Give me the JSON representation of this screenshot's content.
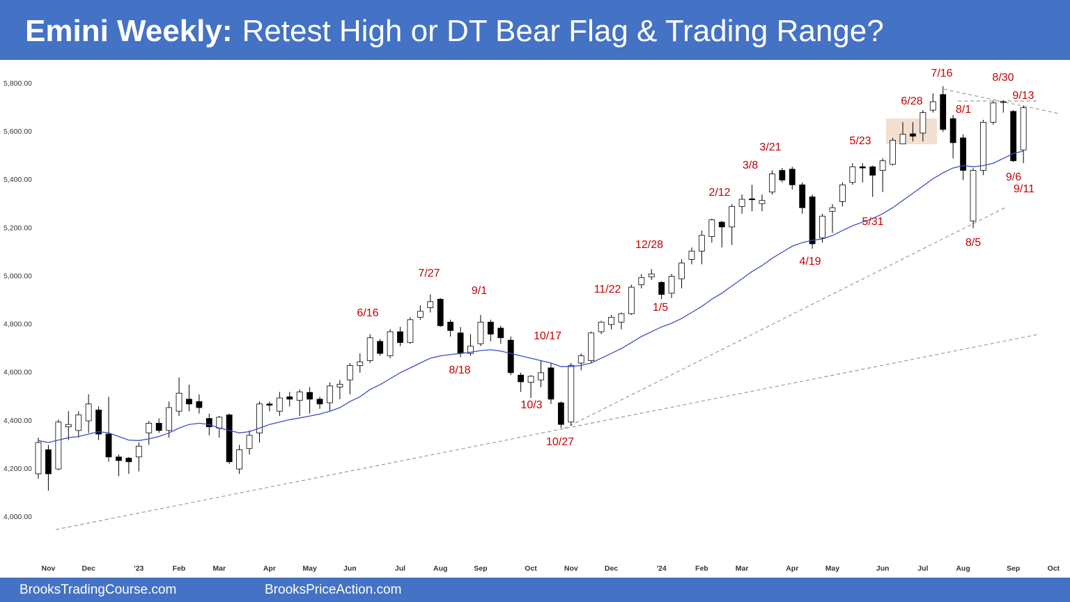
{
  "chart_data": {
    "type": "candlestick",
    "title_bold": "Emini Weekly:",
    "title": "Retest High or DT Bear Flag & Trading Range?",
    "footer_left": "BrooksTradingCourse.com",
    "footer_right": "BrooksPriceAction.com",
    "categories": [
      null,
      "Nov",
      null,
      null,
      null,
      "Dec",
      null,
      null,
      null,
      null,
      "'23",
      null,
      null,
      null,
      "Feb",
      null,
      null,
      null,
      "Mar",
      null,
      null,
      null,
      null,
      "Apr",
      null,
      null,
      null,
      "May",
      null,
      null,
      null,
      "Jun",
      null,
      null,
      null,
      null,
      "Jul",
      null,
      null,
      null,
      "Aug",
      null,
      null,
      null,
      "Sep",
      null,
      null,
      null,
      null,
      "Oct",
      null,
      null,
      null,
      "Nov",
      null,
      null,
      null,
      "Dec",
      null,
      null,
      null,
      null,
      "'24",
      null,
      null,
      null,
      "Feb",
      null,
      null,
      null,
      "Mar",
      null,
      null,
      null,
      null,
      "Apr",
      null,
      null,
      null,
      "May",
      null,
      null,
      null,
      null,
      "Jun",
      null,
      null,
      null,
      "Jul",
      null,
      null,
      null,
      "Aug",
      null,
      null,
      null,
      null,
      "Sep",
      null,
      null,
      null,
      "Oct"
    ],
    "open": [
      4180,
      4280,
      4200,
      4375,
      4360,
      4400,
      4445,
      4345,
      4250,
      4245,
      4250,
      4350,
      4390,
      4360,
      4440,
      4490,
      4480,
      4410,
      4370,
      4425,
      4200,
      4285,
      4350,
      4470,
      4440,
      4500,
      4485,
      4518,
      4490,
      4475,
      4540,
      4570,
      4630,
      4650,
      4730,
      4670,
      4770,
      4725,
      4830,
      4870,
      4905,
      4810,
      4765,
      4680,
      4720,
      4810,
      4785,
      4735,
      4590,
      4560,
      4570,
      4620,
      4475,
      4395,
      4640,
      4650,
      4770,
      4800,
      4810,
      4845,
      4965,
      4998,
      4975,
      4930,
      4990,
      5070,
      5105,
      5165,
      5225,
      5205,
      5290,
      5322,
      5302,
      5350,
      5440,
      5445,
      5380,
      5330,
      5160,
      5270,
      5310,
      5390,
      5455,
      5455,
      5440,
      5465,
      5550,
      5592,
      5595,
      5690,
      5755,
      5655,
      5575,
      5230,
      5440,
      5640,
      5722,
      5685,
      5525,
      null,
      null,
      null
    ],
    "high": [
      4330,
      4300,
      4405,
      4440,
      4440,
      4510,
      4460,
      4500,
      4260,
      4250,
      4310,
      4400,
      4410,
      4480,
      4580,
      4550,
      4510,
      4430,
      4420,
      4430,
      4300,
      4360,
      4480,
      4480,
      4520,
      4520,
      4530,
      4540,
      4500,
      4560,
      4570,
      4640,
      4680,
      4760,
      4740,
      4780,
      4790,
      4830,
      4880,
      4925,
      4910,
      4820,
      4790,
      4760,
      4840,
      4820,
      4795,
      4750,
      4600,
      4590,
      4650,
      4640,
      4480,
      4640,
      4680,
      4770,
      4815,
      4840,
      4850,
      4965,
      5010,
      5030,
      4980,
      5010,
      5070,
      5120,
      5190,
      5240,
      5230,
      5300,
      5340,
      5380,
      5340,
      5440,
      5450,
      5455,
      5390,
      5340,
      5260,
      5300,
      5390,
      5470,
      5470,
      5460,
      5490,
      5575,
      5640,
      5640,
      5690,
      5760,
      5790,
      5670,
      5590,
      5450,
      5650,
      5730,
      5730,
      5690,
      5710,
      null,
      null,
      null
    ],
    "low": [
      4160,
      4110,
      4195,
      4320,
      4330,
      4350,
      4320,
      4230,
      4170,
      4180,
      4190,
      4300,
      4350,
      4330,
      4420,
      4440,
      4430,
      4340,
      4330,
      4220,
      4180,
      4260,
      4310,
      4440,
      4420,
      4460,
      4420,
      4430,
      4450,
      4440,
      4490,
      4510,
      4600,
      4640,
      4670,
      4660,
      4710,
      4720,
      4820,
      4850,
      4790,
      4750,
      4665,
      4670,
      4710,
      4730,
      4720,
      4590,
      4520,
      4495,
      4540,
      4470,
      4370,
      4380,
      4610,
      4640,
      4760,
      4780,
      4780,
      4840,
      4950,
      4985,
      4905,
      4910,
      4950,
      5050,
      5050,
      5140,
      5120,
      5130,
      5260,
      5270,
      5270,
      5340,
      5390,
      5360,
      5260,
      5115,
      5140,
      5180,
      5290,
      5380,
      5390,
      5330,
      5350,
      5460,
      5550,
      5560,
      5560,
      5680,
      5600,
      5490,
      5400,
      5200,
      5420,
      5630,
      5680,
      5475,
      5470,
      null,
      null,
      null
    ],
    "close": [
      4310,
      4180,
      4395,
      4385,
      4425,
      4470,
      4345,
      4250,
      4235,
      4230,
      4295,
      4390,
      4360,
      4455,
      4515,
      4470,
      4455,
      4375,
      4415,
      4230,
      4280,
      4340,
      4470,
      4465,
      4495,
      4490,
      4520,
      4490,
      4470,
      4545,
      4552,
      4630,
      4645,
      4745,
      4680,
      4770,
      4725,
      4820,
      4855,
      4895,
      4795,
      4775,
      4680,
      4710,
      4810,
      4760,
      4745,
      4600,
      4562,
      4585,
      4600,
      4490,
      4385,
      4630,
      4670,
      4765,
      4810,
      4830,
      4845,
      4955,
      4995,
      5010,
      4925,
      5000,
      5055,
      5105,
      5170,
      5235,
      5205,
      5290,
      5320,
      5318,
      5315,
      5425,
      5400,
      5380,
      5285,
      5135,
      5250,
      5285,
      5380,
      5455,
      5450,
      5420,
      5480,
      5565,
      5590,
      5582,
      5680,
      5725,
      5610,
      5555,
      5440,
      5440,
      5640,
      5720,
      5725,
      5480,
      5700,
      null,
      null,
      null
    ],
    "moving_average": {
      "color": "#3b4cc0",
      "values": [
        4318,
        4310,
        4320,
        4330,
        4335,
        4345,
        4355,
        4350,
        4335,
        4320,
        4318,
        4325,
        4335,
        4350,
        4370,
        4385,
        4390,
        4385,
        4370,
        4360,
        4350,
        4355,
        4370,
        4385,
        4395,
        4405,
        4412,
        4420,
        4428,
        4440,
        4455,
        4480,
        4500,
        4530,
        4550,
        4575,
        4600,
        4620,
        4640,
        4660,
        4670,
        4675,
        4680,
        4685,
        4692,
        4695,
        4690,
        4680,
        4670,
        4660,
        4650,
        4640,
        4625,
        4625,
        4630,
        4640,
        4660,
        4680,
        4700,
        4725,
        4750,
        4770,
        4790,
        4805,
        4825,
        4850,
        4875,
        4905,
        4930,
        4960,
        4990,
        5020,
        5045,
        5075,
        5100,
        5125,
        5140,
        5150,
        5155,
        5170,
        5190,
        5210,
        5225,
        5240,
        5260,
        5285,
        5315,
        5345,
        5375,
        5405,
        5430,
        5450,
        5460,
        5455,
        5460,
        5470,
        5490,
        5510,
        5520,
        null,
        null,
        null
      ]
    },
    "up_color": "#ffffff",
    "down_color": "#000000",
    "ylim": [
      3830,
      5890
    ],
    "yticks": [
      {
        "value": 4000,
        "label": "4,000.00"
      },
      {
        "value": 4200,
        "label": "4,200.00"
      },
      {
        "value": 4400,
        "label": "4,400.00"
      },
      {
        "value": 4600,
        "label": "4,600.00"
      },
      {
        "value": 4800,
        "label": "4,800.00"
      },
      {
        "value": 5000,
        "label": "5,000.00"
      },
      {
        "value": 5200,
        "label": "5,200.00"
      },
      {
        "value": 5400,
        "label": "5,400.00"
      },
      {
        "value": 5600,
        "label": "5,600.00"
      },
      {
        "value": 5800,
        "label": "5,800.00"
      }
    ],
    "grid": false,
    "annotations": [
      "7/16",
      "8/30",
      "9/13",
      "6/28",
      "8/1",
      "5/23",
      "3/21",
      "3/8",
      "2/12",
      "9/6",
      "9/11",
      "5/31",
      "8/5",
      "12/28",
      "4/19",
      "7/27",
      "9/1",
      "11/22",
      "1/5",
      "6/16",
      "10/17",
      "8/18",
      "10/3",
      "10/27"
    ]
  }
}
